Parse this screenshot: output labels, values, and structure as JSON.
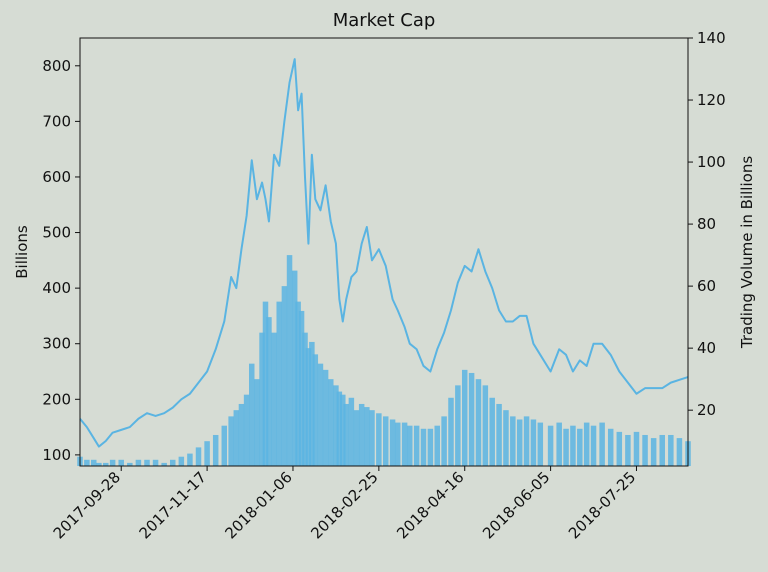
{
  "chart_data": {
    "type": "line",
    "title": "Market Cap",
    "ylabel_left": "Billions",
    "ylabel_right": "Trading Volume in Billions",
    "xlim": [
      "2017-09-04",
      "2018-08-24"
    ],
    "ylim_left": [
      80,
      850
    ],
    "ylim_right": [
      2,
      140
    ],
    "x_ticks": [
      "2017-09-28",
      "2017-11-17",
      "2018-01-06",
      "2018-02-25",
      "2018-04-16",
      "2018-06-05",
      "2018-07-25"
    ],
    "y_ticks_left": [
      "100",
      "200",
      "300",
      "400",
      "500",
      "600",
      "700",
      "800"
    ],
    "y_ticks_right": [
      "20",
      "40",
      "60",
      "80",
      "100",
      "120",
      "140"
    ],
    "colors": {
      "line": "#5ab4e2",
      "bars": "#5ab4e2",
      "background": "#d6dcd4"
    },
    "series": [
      {
        "type": "line",
        "x": [
          "2017-09-04",
          "2017-09-08",
          "2017-09-12",
          "2017-09-15",
          "2017-09-19",
          "2017-09-23",
          "2017-09-28",
          "2017-10-03",
          "2017-10-08",
          "2017-10-13",
          "2017-10-18",
          "2017-10-23",
          "2017-10-28",
          "2017-11-02",
          "2017-11-07",
          "2017-11-12",
          "2017-11-17",
          "2017-11-22",
          "2017-11-27",
          "2017-12-01",
          "2017-12-04",
          "2017-12-07",
          "2017-12-10",
          "2017-12-13",
          "2017-12-16",
          "2017-12-19",
          "2017-12-21",
          "2017-12-23",
          "2017-12-26",
          "2017-12-29",
          "2018-01-01",
          "2018-01-04",
          "2018-01-07",
          "2018-01-09",
          "2018-01-11",
          "2018-01-13",
          "2018-01-15",
          "2018-01-17",
          "2018-01-19",
          "2018-01-22",
          "2018-01-25",
          "2018-01-28",
          "2018-01-31",
          "2018-02-02",
          "2018-02-04",
          "2018-02-06",
          "2018-02-09",
          "2018-02-12",
          "2018-02-15",
          "2018-02-18",
          "2018-02-21",
          "2018-02-25",
          "2018-03-01",
          "2018-03-05",
          "2018-03-08",
          "2018-03-12",
          "2018-03-15",
          "2018-03-19",
          "2018-03-23",
          "2018-03-27",
          "2018-03-31",
          "2018-04-04",
          "2018-04-08",
          "2018-04-12",
          "2018-04-16",
          "2018-04-20",
          "2018-04-24",
          "2018-04-28",
          "2018-05-02",
          "2018-05-06",
          "2018-05-10",
          "2018-05-14",
          "2018-05-18",
          "2018-05-22",
          "2018-05-26",
          "2018-05-30",
          "2018-06-05",
          "2018-06-10",
          "2018-06-14",
          "2018-06-18",
          "2018-06-22",
          "2018-06-26",
          "2018-06-30",
          "2018-07-05",
          "2018-07-10",
          "2018-07-15",
          "2018-07-20",
          "2018-07-25",
          "2018-07-30",
          "2018-08-04",
          "2018-08-09",
          "2018-08-14",
          "2018-08-19",
          "2018-08-24"
        ],
        "values": [
          165,
          150,
          130,
          115,
          125,
          140,
          145,
          150,
          165,
          175,
          170,
          175,
          185,
          200,
          210,
          230,
          250,
          290,
          340,
          420,
          400,
          470,
          530,
          630,
          560,
          590,
          560,
          520,
          640,
          620,
          700,
          770,
          812,
          720,
          750,
          600,
          480,
          640,
          560,
          540,
          585,
          520,
          480,
          380,
          340,
          380,
          420,
          430,
          480,
          510,
          450,
          470,
          440,
          380,
          360,
          330,
          300,
          290,
          260,
          250,
          290,
          320,
          360,
          410,
          440,
          430,
          470,
          430,
          400,
          360,
          340,
          340,
          350,
          350,
          300,
          280,
          250,
          290,
          280,
          250,
          270,
          260,
          300,
          300,
          280,
          250,
          230,
          210,
          220,
          220,
          220,
          230,
          235,
          240
        ]
      },
      {
        "type": "bar",
        "axis": "right",
        "x": [
          "2017-09-04",
          "2017-09-08",
          "2017-09-12",
          "2017-09-15",
          "2017-09-19",
          "2017-09-23",
          "2017-09-28",
          "2017-10-03",
          "2017-10-08",
          "2017-10-13",
          "2017-10-18",
          "2017-10-23",
          "2017-10-28",
          "2017-11-02",
          "2017-11-07",
          "2017-11-12",
          "2017-11-17",
          "2017-11-22",
          "2017-11-27",
          "2017-12-01",
          "2017-12-04",
          "2017-12-07",
          "2017-12-10",
          "2017-12-13",
          "2017-12-16",
          "2017-12-19",
          "2017-12-21",
          "2017-12-23",
          "2017-12-26",
          "2017-12-29",
          "2018-01-01",
          "2018-01-04",
          "2018-01-07",
          "2018-01-09",
          "2018-01-11",
          "2018-01-13",
          "2018-01-15",
          "2018-01-17",
          "2018-01-19",
          "2018-01-22",
          "2018-01-25",
          "2018-01-28",
          "2018-01-31",
          "2018-02-02",
          "2018-02-04",
          "2018-02-06",
          "2018-02-09",
          "2018-02-12",
          "2018-02-15",
          "2018-02-18",
          "2018-02-21",
          "2018-02-25",
          "2018-03-01",
          "2018-03-05",
          "2018-03-08",
          "2018-03-12",
          "2018-03-15",
          "2018-03-19",
          "2018-03-23",
          "2018-03-27",
          "2018-03-31",
          "2018-04-04",
          "2018-04-08",
          "2018-04-12",
          "2018-04-16",
          "2018-04-20",
          "2018-04-24",
          "2018-04-28",
          "2018-05-02",
          "2018-05-06",
          "2018-05-10",
          "2018-05-14",
          "2018-05-18",
          "2018-05-22",
          "2018-05-26",
          "2018-05-30",
          "2018-06-05",
          "2018-06-10",
          "2018-06-14",
          "2018-06-18",
          "2018-06-22",
          "2018-06-26",
          "2018-06-30",
          "2018-07-05",
          "2018-07-10",
          "2018-07-15",
          "2018-07-20",
          "2018-07-25",
          "2018-07-30",
          "2018-08-04",
          "2018-08-09",
          "2018-08-14",
          "2018-08-19",
          "2018-08-24"
        ],
        "values": [
          5,
          4,
          4,
          3,
          3,
          4,
          4,
          3,
          4,
          4,
          4,
          3,
          4,
          5,
          6,
          8,
          10,
          12,
          15,
          18,
          20,
          22,
          25,
          35,
          30,
          45,
          55,
          50,
          45,
          55,
          60,
          70,
          65,
          55,
          52,
          45,
          40,
          42,
          38,
          35,
          33,
          30,
          28,
          26,
          25,
          22,
          24,
          20,
          22,
          21,
          20,
          19,
          18,
          17,
          16,
          16,
          15,
          15,
          14,
          14,
          15,
          18,
          24,
          28,
          33,
          32,
          30,
          28,
          24,
          22,
          20,
          18,
          17,
          18,
          17,
          16,
          15,
          16,
          14,
          15,
          14,
          16,
          15,
          16,
          14,
          13,
          12,
          13,
          12,
          11,
          12,
          12,
          11,
          10
        ]
      }
    ]
  }
}
